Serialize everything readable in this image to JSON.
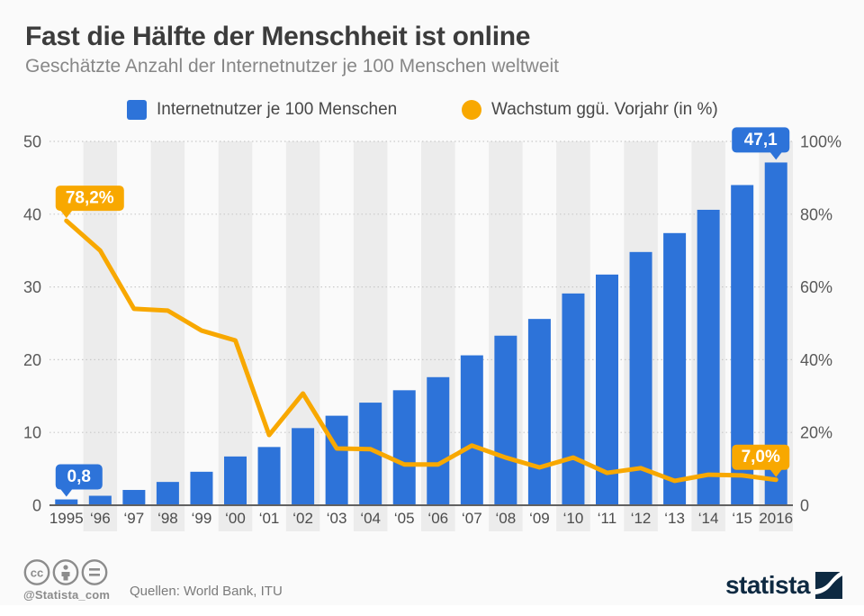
{
  "header": {
    "title": "Fast die Hälfte der Menschheit ist online",
    "subtitle": "Geschätzte Anzahl der Internetnutzer je 100 Menschen weltweit"
  },
  "legend": [
    {
      "label": "Internetnutzer je 100 Menschen",
      "marker": "square",
      "color": "#2d73d9"
    },
    {
      "label": "Wachstum ggü. Vorjahr (in %)",
      "marker": "circle",
      "color": "#f8a800"
    }
  ],
  "chart_data": {
    "type": "bar+line",
    "categories": [
      "1995",
      "‘96",
      "‘97",
      "‘98",
      "‘99",
      "‘00",
      "‘01",
      "‘02",
      "‘03",
      "‘04",
      "‘05",
      "‘06",
      "‘07",
      "‘08",
      "‘09",
      "‘10",
      "‘11",
      "‘12",
      "‘13",
      "‘14",
      "‘15",
      "2016"
    ],
    "series": [
      {
        "name": "Internetnutzer je 100 Menschen",
        "type": "bar",
        "axis": "left",
        "values": [
          0.8,
          1.3,
          2.1,
          3.2,
          4.6,
          6.7,
          8.0,
          10.6,
          12.3,
          14.1,
          15.8,
          17.6,
          20.6,
          23.3,
          25.6,
          29.1,
          31.7,
          34.8,
          37.4,
          40.6,
          44.0,
          47.1
        ]
      },
      {
        "name": "Wachstum ggü. Vorjahr (in %)",
        "type": "line",
        "axis": "right",
        "values": [
          78.2,
          70.0,
          54.0,
          53.5,
          48.0,
          45.3,
          19.3,
          30.7,
          15.6,
          15.4,
          11.2,
          11.2,
          16.4,
          13.1,
          10.4,
          13.1,
          8.9,
          10.2,
          6.7,
          8.4,
          8.2,
          7.0
        ]
      }
    ],
    "left_axis": {
      "range": [
        0,
        50
      ],
      "ticks": [
        0,
        10,
        20,
        30,
        40,
        50
      ]
    },
    "right_axis": {
      "range": [
        0,
        100
      ],
      "tick_values": [
        0,
        20,
        40,
        60,
        80,
        100
      ],
      "tick_labels": [
        "0",
        "20%",
        "40%",
        "60%",
        "80%",
        "100%"
      ]
    },
    "annotations": [
      {
        "text": "78,2%",
        "series": "line",
        "index": 0,
        "pointer": "left",
        "fill": "#f8a800"
      },
      {
        "text": "0,8",
        "series": "bar",
        "index": 0,
        "pointer": "left",
        "fill": "#2d73d9"
      },
      {
        "text": "47,1",
        "series": "bar",
        "index": 21,
        "pointer": "right",
        "fill": "#2d73d9"
      },
      {
        "text": "7,0%",
        "series": "line",
        "index": 21,
        "pointer": "right",
        "fill": "#f8a800"
      }
    ],
    "grid": "dotted-horizontal",
    "stripes": "alternating-columns-on-even-years",
    "legend_position": "top",
    "colors": {
      "bar": "#2d73d9",
      "line": "#f8a800",
      "stripe": "#ececec",
      "grid": "#c9c9c9",
      "baseline": "#616161",
      "axis_text": "#595959",
      "category_text": "#4c4c4c",
      "bubble_text": "#ffffff"
    }
  },
  "footer": {
    "handle": "@Statista_com",
    "source": "Quellen: World Bank, ITU",
    "brand": "statista",
    "brand_color": "#0e2a42",
    "license_icons": [
      "cc",
      "attribution",
      "no-derivatives"
    ]
  }
}
